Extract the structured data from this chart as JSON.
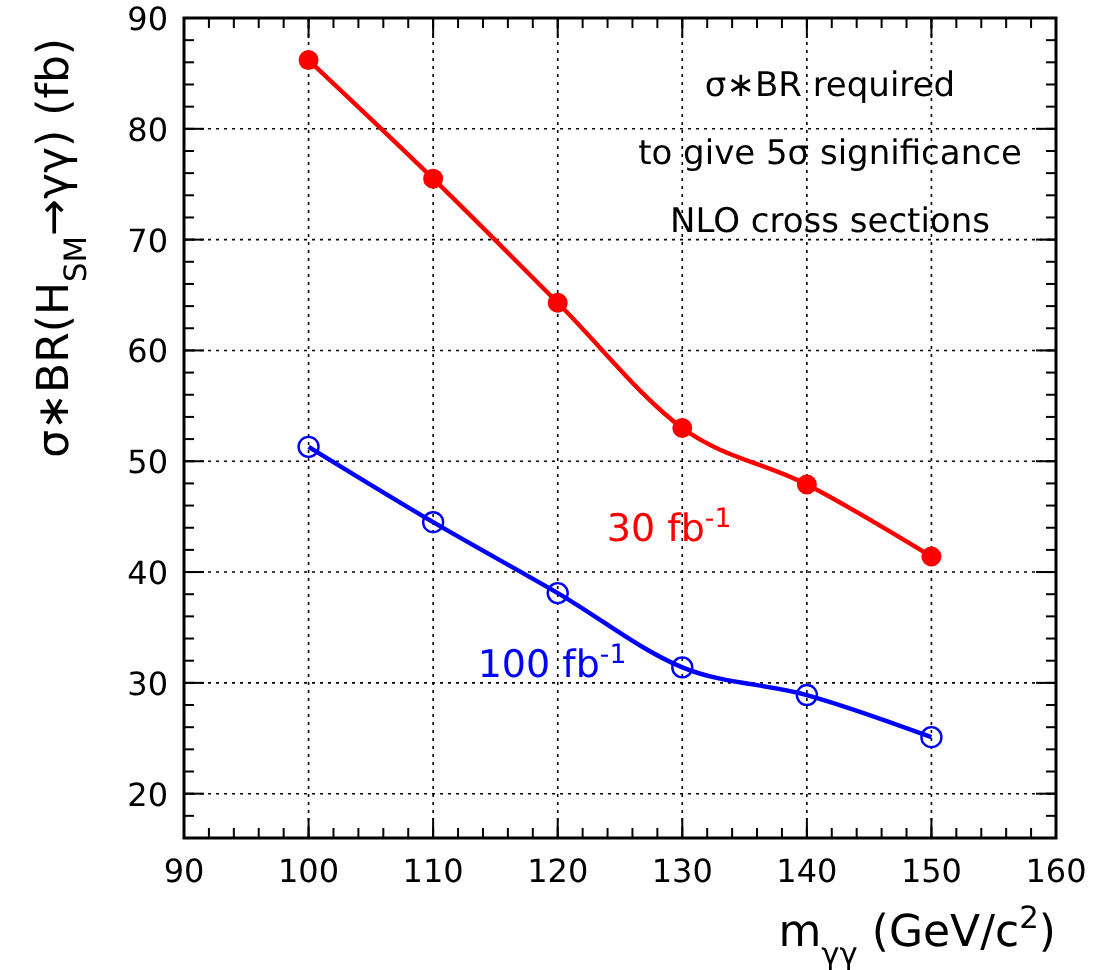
{
  "chart_data": {
    "type": "line",
    "xlabel": "m$_{γγ}$ (GeV/c$^{2}$)",
    "ylabel": "σ∗BR(H$_{SM}$→γγ) (fb)",
    "x": [
      100,
      110,
      120,
      130,
      140,
      150
    ],
    "series": [
      {
        "name": "30 fb$^{-1}$",
        "color": "#ff0000",
        "marker": "circle",
        "values": [
          86.2,
          75.5,
          64.3,
          53.0,
          47.9,
          41.4
        ]
      },
      {
        "name": "100 fb$^{-1}$",
        "color": "#0000ff",
        "marker": "circle-open",
        "values": [
          51.3,
          44.5,
          38.1,
          31.4,
          28.9,
          25.1
        ]
      }
    ],
    "xlim": [
      90,
      160
    ],
    "xticks": [
      90,
      100,
      110,
      120,
      130,
      140,
      150,
      160
    ],
    "ylim": [
      16,
      90
    ],
    "yticks": [
      20,
      30,
      40,
      50,
      60,
      70,
      80,
      90
    ],
    "grid": true,
    "annotations": [
      "σ∗BR required",
      "to give 5σ significance",
      "NLO cross sections"
    ]
  }
}
